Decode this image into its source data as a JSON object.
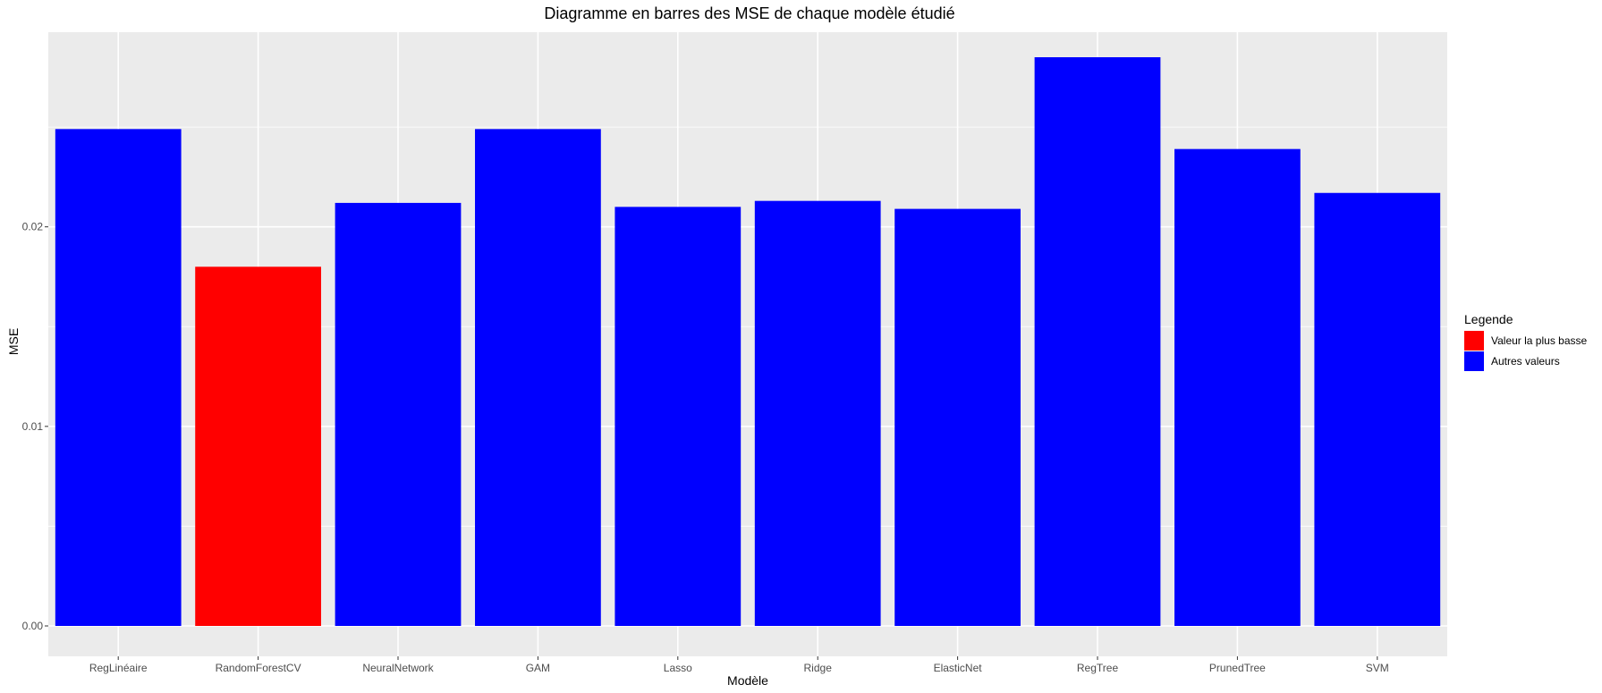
{
  "chart_data": {
    "type": "bar",
    "title": "Diagramme en barres des MSE de chaque modèle étudié",
    "xlabel": "Modèle",
    "ylabel": "MSE",
    "categories": [
      "RegLinéaire",
      "RandomForestCV",
      "NeuralNetwork",
      "GAM",
      "Lasso",
      "Ridge",
      "ElasticNet",
      "RegTree",
      "PrunedTree",
      "SVM"
    ],
    "values": [
      0.0249,
      0.018,
      0.0212,
      0.0249,
      0.021,
      0.0213,
      0.0209,
      0.0285,
      0.0239,
      0.0217
    ],
    "groups": [
      "Autres valeurs",
      "Valeur la plus basse",
      "Autres valeurs",
      "Autres valeurs",
      "Autres valeurs",
      "Autres valeurs",
      "Autres valeurs",
      "Autres valeurs",
      "Autres valeurs",
      "Autres valeurs"
    ],
    "ylim": [
      0,
      0.0285
    ],
    "yticks": [
      0.0,
      0.01,
      0.02
    ],
    "ytick_labels": [
      "0.00",
      "0.01",
      "0.02"
    ],
    "grid": true,
    "legend": {
      "title": "Legende",
      "placement": "right",
      "entries": [
        {
          "label": "Valeur la plus basse",
          "color": "#ff0000"
        },
        {
          "label": "Autres valeurs",
          "color": "#0000ff"
        }
      ]
    },
    "colors": {
      "panel_background": "#ebebeb",
      "grid": "#ffffff",
      "lowest": "#ff0000",
      "other": "#0000ff"
    }
  }
}
